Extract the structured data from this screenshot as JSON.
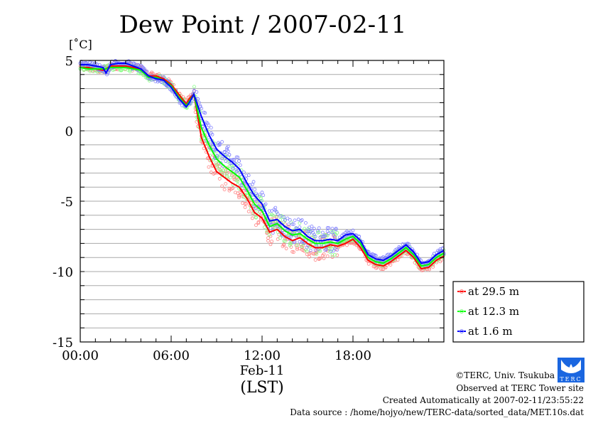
{
  "chart_data": {
    "type": "line",
    "title": "Dew Point / 2007-02-11",
    "ylabel": "[˚C]",
    "xlabel": "(LST)",
    "date_label": "Feb-11",
    "ylim": [
      -15,
      5
    ],
    "xlim": [
      0,
      24
    ],
    "yticks": [
      {
        "v": 5,
        "label": "5"
      },
      {
        "v": 0,
        "label": "0"
      },
      {
        "v": -5,
        "label": "-5"
      },
      {
        "v": -10,
        "label": "-10"
      },
      {
        "v": -15,
        "label": "-15"
      }
    ],
    "xticks": [
      {
        "v": 0,
        "label": "00:00"
      },
      {
        "v": 6,
        "label": "06:00"
      },
      {
        "v": 12,
        "label": "12:00"
      },
      {
        "v": 18,
        "label": "18:00"
      }
    ],
    "grid": true,
    "legend_position": "bottom-right outside",
    "x": [
      0,
      0.5,
      1,
      1.5,
      1.7,
      2,
      2.5,
      3,
      3.5,
      4,
      4.5,
      5,
      5.5,
      6,
      6.5,
      7,
      7.2,
      7.5,
      8,
      8.5,
      9,
      9.5,
      10,
      10.5,
      11,
      11.5,
      12,
      12.5,
      13,
      13.5,
      14,
      14.5,
      15,
      15.5,
      16,
      16.5,
      17,
      17.5,
      18,
      18.5,
      19,
      19.5,
      20,
      20.5,
      21,
      21.5,
      22,
      22.5,
      23,
      23.5,
      24
    ],
    "series": [
      {
        "name": "at 29.5 m",
        "color": "#ff0000",
        "dot_color": "#ff8080",
        "values": [
          4.5,
          4.5,
          4.4,
          4.3,
          4.4,
          4.6,
          4.6,
          4.6,
          4.5,
          4.4,
          3.9,
          3.9,
          3.7,
          3.3,
          2.6,
          1.9,
          2.3,
          2.6,
          -0.5,
          -1.8,
          -2.9,
          -3.3,
          -3.7,
          -4.0,
          -4.8,
          -5.8,
          -6.2,
          -7.2,
          -7.0,
          -7.5,
          -7.8,
          -7.6,
          -8.0,
          -8.3,
          -8.3,
          -8.1,
          -8.2,
          -8.0,
          -7.7,
          -8.3,
          -9.2,
          -9.5,
          -9.6,
          -9.3,
          -8.9,
          -8.5,
          -9.0,
          -9.8,
          -9.7,
          -9.2,
          -8.9
        ]
      },
      {
        "name": "at 12.3 m",
        "color": "#00ff00",
        "dot_color": "#80ff80",
        "values": [
          4.5,
          4.4,
          4.4,
          4.4,
          4.4,
          4.5,
          4.5,
          4.5,
          4.4,
          4.3,
          3.8,
          3.8,
          3.6,
          3.2,
          2.4,
          1.8,
          2.1,
          2.6,
          0.2,
          -1.0,
          -2.0,
          -2.5,
          -2.9,
          -3.3,
          -4.2,
          -5.2,
          -5.7,
          -6.8,
          -6.6,
          -7.1,
          -7.4,
          -7.3,
          -7.7,
          -8.0,
          -8.0,
          -7.9,
          -8.0,
          -7.7,
          -7.5,
          -8.0,
          -9.0,
          -9.3,
          -9.4,
          -9.1,
          -8.7,
          -8.3,
          -8.8,
          -9.6,
          -9.5,
          -9.0,
          -8.7
        ]
      },
      {
        "name": "at 1.6 m",
        "color": "#0000ff",
        "dot_color": "#8080ff",
        "values": [
          4.7,
          4.7,
          4.6,
          4.5,
          4.1,
          4.7,
          4.8,
          4.8,
          4.6,
          4.4,
          3.9,
          3.7,
          3.6,
          3.1,
          2.3,
          1.7,
          2.0,
          2.6,
          1.0,
          -0.3,
          -1.3,
          -1.8,
          -2.2,
          -2.7,
          -3.7,
          -4.6,
          -5.2,
          -6.4,
          -6.3,
          -6.8,
          -7.1,
          -7.0,
          -7.5,
          -7.8,
          -7.8,
          -7.7,
          -7.8,
          -7.4,
          -7.3,
          -7.8,
          -8.8,
          -9.1,
          -9.2,
          -8.9,
          -8.5,
          -8.1,
          -8.6,
          -9.4,
          -9.3,
          -8.8,
          -8.5
        ]
      }
    ]
  },
  "credits": {
    "copyright": "©TERC, Univ. Tsukuba",
    "observed": "Observed at TERC Tower site",
    "created": "Created Automatically at 2007-02-11/23:55:22",
    "source": "Data source : /home/hojyo/new/TERC-data/sorted_data/MET.10s.dat",
    "logo_text": "TERC"
  }
}
